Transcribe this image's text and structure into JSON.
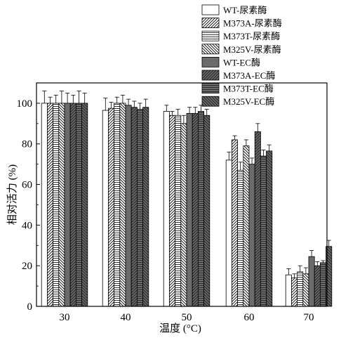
{
  "chart_data": {
    "type": "bar",
    "xlabel": "温度 (°C)",
    "ylabel": "相对活力 (%)",
    "ylim": [
      0,
      110
    ],
    "yticks": [
      0,
      20,
      40,
      60,
      80,
      100
    ],
    "categories": [
      "30",
      "40",
      "50",
      "60",
      "70"
    ],
    "legend_position": "top-right",
    "series": [
      {
        "name": "WT-尿素酶",
        "fill": "#ffffff",
        "pattern": "none",
        "values": [
          100,
          96.5,
          96,
          72,
          15.5
        ],
        "errors": [
          6,
          6,
          3,
          4,
          3
        ]
      },
      {
        "name": "M373A-尿素酶",
        "fill": "#ffffff",
        "pattern": "diag-right",
        "values": [
          100,
          97.5,
          94,
          82,
          14
        ],
        "errors": [
          3,
          3,
          2,
          2,
          2
        ]
      },
      {
        "name": "M373T-尿素酶",
        "fill": "#ffffff",
        "pattern": "horizontal",
        "values": [
          100,
          100,
          94,
          67,
          17
        ],
        "errors": [
          4,
          3,
          3,
          4,
          3
        ]
      },
      {
        "name": "M325V-尿素酶",
        "fill": "#ffffff",
        "pattern": "diag-left",
        "values": [
          100,
          100,
          90,
          79,
          16
        ],
        "errors": [
          6,
          4,
          4,
          3,
          3
        ]
      },
      {
        "name": "WT-EC酶",
        "fill": "#6b6b6b",
        "pattern": "none",
        "values": [
          100,
          99,
          95,
          70,
          24.5
        ],
        "errors": [
          5,
          3,
          3,
          3,
          3
        ]
      },
      {
        "name": "M373A-EC酶",
        "fill": "#6b6b6b",
        "pattern": "diag-right",
        "values": [
          100,
          98,
          95,
          86,
          20
        ],
        "errors": [
          4,
          3,
          3,
          4,
          2
        ]
      },
      {
        "name": "M373T-EC酶",
        "fill": "#6b6b6b",
        "pattern": "horizontal",
        "values": [
          100,
          97,
          96,
          74,
          21.5
        ],
        "errors": [
          6,
          3,
          3,
          3,
          1
        ]
      },
      {
        "name": "M325V-EC酶",
        "fill": "#6b6b6b",
        "pattern": "diag-left",
        "values": [
          100,
          98,
          94,
          76.5,
          29.5
        ],
        "errors": [
          5,
          4,
          3,
          3,
          3
        ]
      }
    ]
  }
}
